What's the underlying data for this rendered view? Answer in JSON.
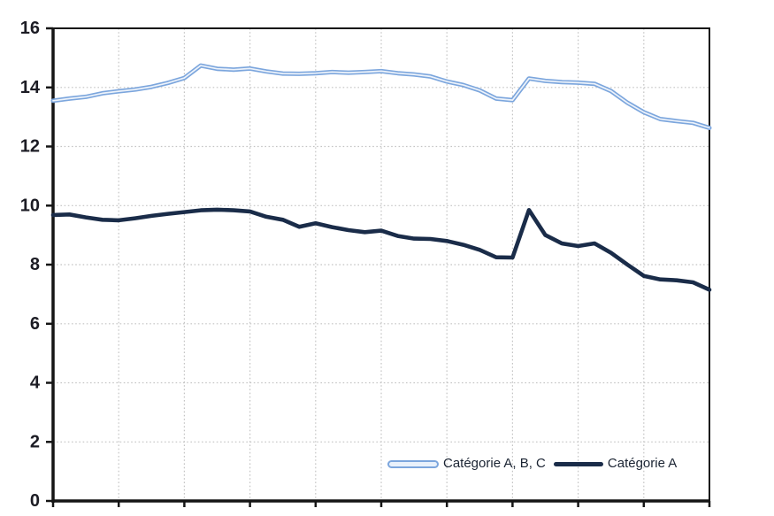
{
  "page": {
    "background": "#ffffff",
    "title": ""
  },
  "chart_data": {
    "type": "line",
    "title": "",
    "xlabel": "",
    "ylabel": "",
    "ylim": [
      0,
      16
    ],
    "yticks": [
      0,
      2,
      4,
      6,
      8,
      10,
      12,
      14,
      16
    ],
    "x_axis": {
      "intervals": 10,
      "tick_marks": 11,
      "labels_visible": false
    },
    "grid": "dotted-gray-both-axes",
    "plot_border": "solid-black",
    "legend_position": "inside-bottom-right",
    "series": [
      {
        "name": "Catégorie A, B, C",
        "color": "#7ca6dd",
        "inner_color": "#edf3fb",
        "style": "double-line",
        "values": [
          13.55,
          13.62,
          13.68,
          13.8,
          13.87,
          13.93,
          14.02,
          14.15,
          14.32,
          14.74,
          14.63,
          14.6,
          14.64,
          14.54,
          14.47,
          14.46,
          14.48,
          14.52,
          14.5,
          14.52,
          14.55,
          14.48,
          14.44,
          14.37,
          14.2,
          14.08,
          13.9,
          13.62,
          13.57,
          14.3,
          14.22,
          14.18,
          14.16,
          14.12,
          13.88,
          13.48,
          13.16,
          12.93,
          12.86,
          12.8,
          12.63
        ]
      },
      {
        "name": "Catégorie A",
        "color": "#1a2c49",
        "style": "solid-thick",
        "values": [
          9.68,
          9.7,
          9.6,
          9.52,
          9.5,
          9.57,
          9.65,
          9.72,
          9.78,
          9.84,
          9.86,
          9.84,
          9.8,
          9.62,
          9.52,
          9.28,
          9.4,
          9.27,
          9.17,
          9.1,
          9.15,
          8.97,
          8.88,
          8.87,
          8.8,
          8.67,
          8.5,
          8.25,
          8.24,
          9.85,
          9.0,
          8.72,
          8.63,
          8.72,
          8.4,
          8.0,
          7.62,
          7.5,
          7.47,
          7.4,
          7.15
        ]
      }
    ],
    "colors": {
      "grid": "#c4c4c4",
      "axis": "#151515",
      "tick_label": "#1c1c24",
      "legend_text": "#1b2433"
    }
  },
  "legend": {
    "items": [
      {
        "label": "Catégorie A, B, C"
      },
      {
        "label": "Catégorie A"
      }
    ]
  }
}
